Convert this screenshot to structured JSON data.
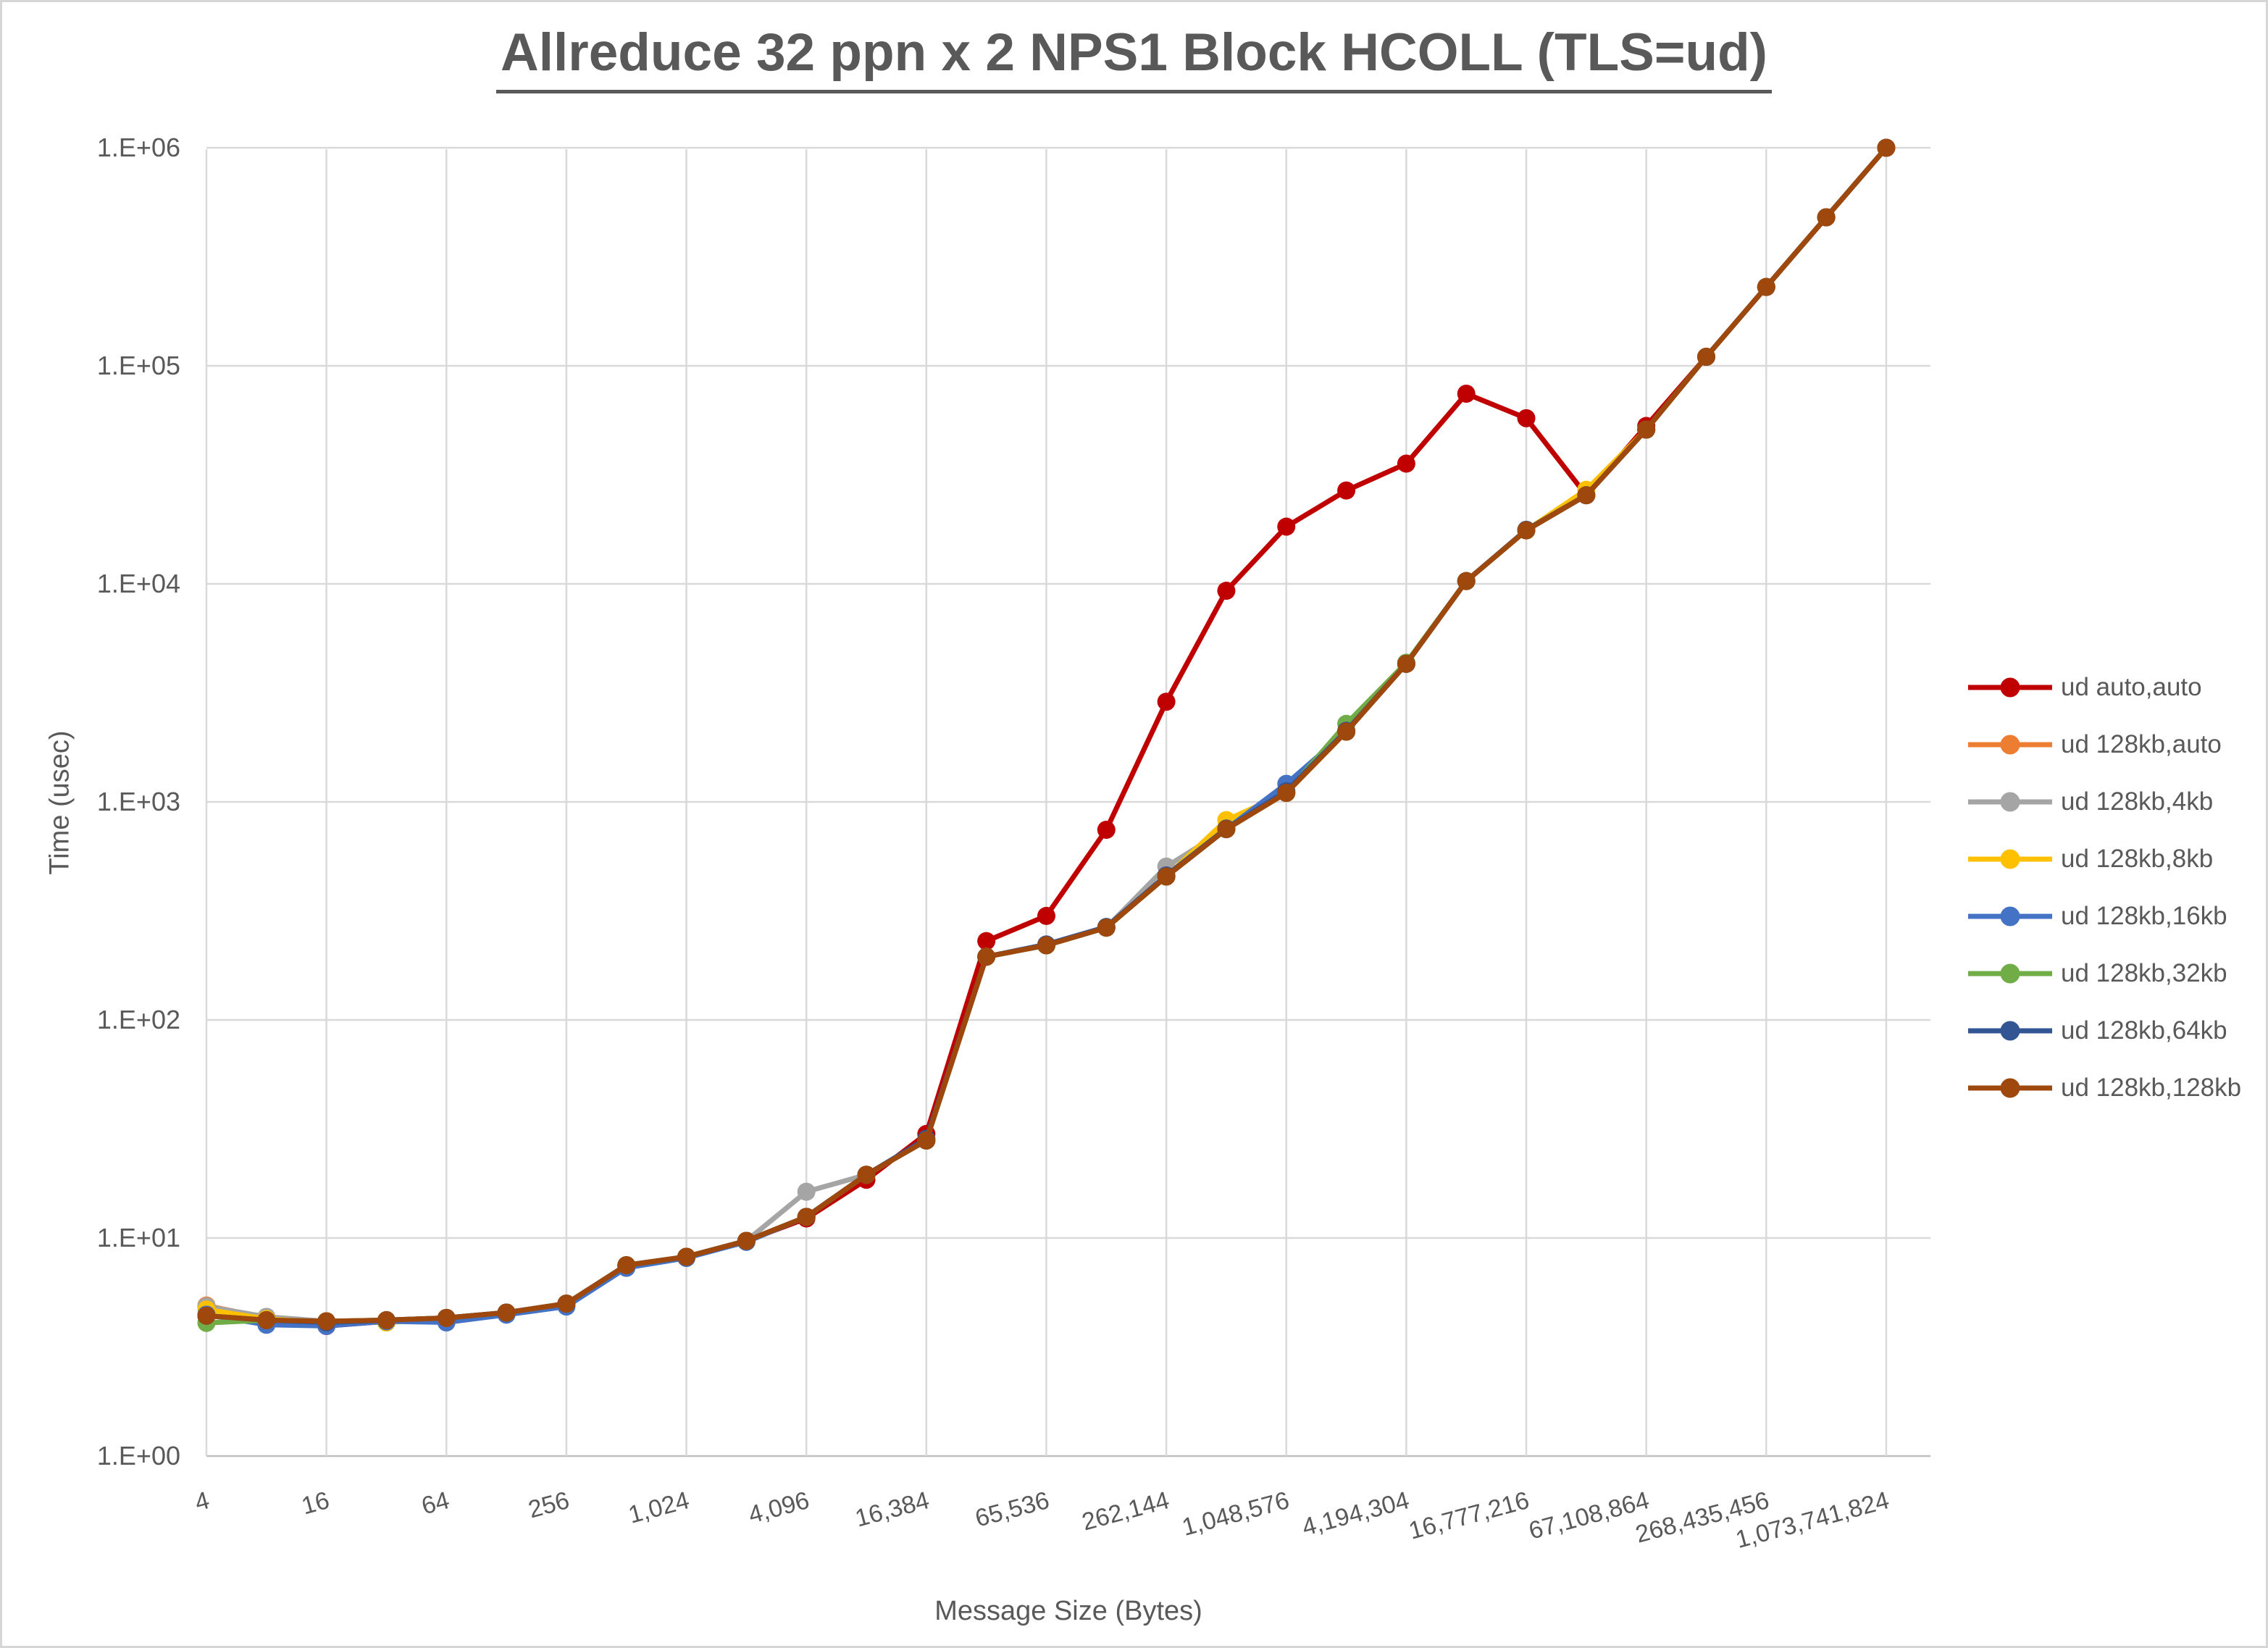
{
  "title": {
    "text": "Allreduce 32 ppn x 2 NPS1 Block HCOLL (TLS=ud)",
    "color": "#595959"
  },
  "axes": {
    "y_title": "Time (usec)",
    "x_title": "Message Size (Bytes)",
    "y_tick_labels": [
      "1.E+00",
      "1.E+01",
      "1.E+02",
      "1.E+03",
      "1.E+04",
      "1.E+05",
      "1.E+06"
    ],
    "x_tick_labels": [
      "4",
      "16",
      "64",
      "256",
      "1,024",
      "4,096",
      "16,384",
      "65,536",
      "262,144",
      "1,048,576",
      "4,194,304",
      "16,777,216",
      "67,108,864",
      "268,435,456",
      "1,073,741,824"
    ],
    "text_color": "#595959",
    "gridline_color": "#d9d9d9",
    "axis_line_color": "#bfbfbf"
  },
  "chart_data": {
    "type": "line",
    "title": "Allreduce 32 ppn x 2 NPS1 Block HCOLL (TLS=ud)",
    "xlabel": "Message Size (Bytes)",
    "ylabel": "Time (usec)",
    "x_scale": "log2",
    "y_scale": "log10",
    "ylim": [
      1,
      1000000
    ],
    "grid": true,
    "legend_position": "right",
    "x": [
      4,
      8,
      16,
      32,
      64,
      128,
      256,
      512,
      1024,
      2048,
      4096,
      8192,
      16384,
      32768,
      65536,
      131072,
      262144,
      524288,
      1048576,
      2097152,
      4194304,
      8388608,
      16777216,
      33554432,
      67108864,
      134217728,
      268435456,
      536870912,
      1073741824
    ],
    "x_tick_values": [
      4,
      16,
      64,
      256,
      1024,
      4096,
      16384,
      65536,
      262144,
      1048576,
      4194304,
      16777216,
      67108864,
      268435456,
      1073741824
    ],
    "series": [
      {
        "name": "ud auto,auto",
        "color": "#c00000",
        "values": [
          4.4,
          4.15,
          3.95,
          4.15,
          4.25,
          4.5,
          4.95,
          7.5,
          8.2,
          9.7,
          12.3,
          18.5,
          30,
          230,
          300,
          745,
          2880,
          9300,
          18300,
          26800,
          35600,
          74500,
          57500,
          25500,
          53000,
          110000,
          230000,
          480000,
          1000000
        ]
      },
      {
        "name": "ud 128kb,auto",
        "color": "#ed7d31",
        "values": [
          4.9,
          4.3,
          4.15,
          4.1,
          4.3,
          4.55,
          5.0,
          7.5,
          8.2,
          9.7,
          12.5,
          19.5,
          28,
          195,
          220,
          265,
          455,
          750,
          1100,
          2100,
          4300,
          10300,
          17600,
          25500,
          51000,
          110000,
          230000,
          480000,
          1000000
        ]
      },
      {
        "name": "ud 128kb,4kb",
        "color": "#a5a5a5",
        "values": [
          4.85,
          4.35,
          4.15,
          4.2,
          4.3,
          4.55,
          5.0,
          7.5,
          8.2,
          9.7,
          16.3,
          19.5,
          28,
          195,
          220,
          265,
          505,
          750,
          1100,
          2100,
          4300,
          10300,
          17600,
          25500,
          51000,
          110000,
          230000,
          480000,
          1000000
        ]
      },
      {
        "name": "ud 128kb,8kb",
        "color": "#ffc000",
        "values": [
          4.7,
          4.25,
          4.1,
          4.1,
          4.25,
          4.5,
          5.0,
          7.5,
          8.2,
          9.7,
          12.5,
          19.5,
          28,
          195,
          220,
          265,
          455,
          825,
          1100,
          2100,
          4300,
          10300,
          17600,
          27000,
          51000,
          110000,
          230000,
          480000,
          1000000
        ]
      },
      {
        "name": "ud 128kb,16kb",
        "color": "#4472c4",
        "values": [
          4.45,
          4.0,
          3.95,
          4.15,
          4.1,
          4.45,
          4.85,
          7.3,
          8.1,
          9.6,
          12.5,
          19.5,
          28,
          195,
          220,
          265,
          455,
          750,
          1210,
          2100,
          4300,
          10300,
          17600,
          25500,
          51000,
          110000,
          230000,
          480000,
          1000000
        ]
      },
      {
        "name": "ud 128kb,32kb",
        "color": "#70ad47",
        "values": [
          4.08,
          4.2,
          4.15,
          4.2,
          4.3,
          4.55,
          5.0,
          7.5,
          8.2,
          9.7,
          12.5,
          19.5,
          28,
          195,
          220,
          265,
          455,
          750,
          1100,
          2280,
          4350,
          10300,
          17600,
          25500,
          51000,
          110000,
          230000,
          480000,
          1000000
        ]
      },
      {
        "name": "ud 128kb,64kb",
        "color": "#335593",
        "values": [
          4.4,
          4.2,
          4.1,
          4.2,
          4.3,
          4.55,
          5.0,
          7.5,
          8.2,
          9.7,
          12.5,
          19.5,
          28.5,
          195,
          222,
          267,
          460,
          755,
          1120,
          2120,
          4300,
          10300,
          17700,
          25500,
          51000,
          110000,
          230000,
          480000,
          1000000
        ]
      },
      {
        "name": "ud 128kb,128kb",
        "color": "#9e480e",
        "values": [
          4.4,
          4.2,
          4.15,
          4.2,
          4.3,
          4.55,
          5.0,
          7.5,
          8.2,
          9.7,
          12.5,
          19.5,
          28,
          195,
          220,
          265,
          455,
          750,
          1100,
          2100,
          4300,
          10300,
          17600,
          25500,
          51000,
          110000,
          230000,
          480000,
          1000000
        ]
      }
    ]
  }
}
